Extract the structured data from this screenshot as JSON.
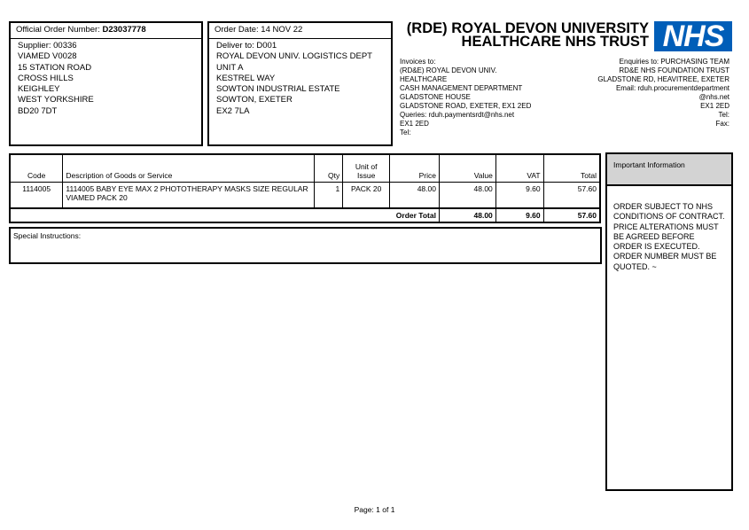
{
  "order": {
    "number_label": "Official Order Number:",
    "number": "D23037778",
    "date_label": "Order Date:",
    "date": "14 NOV 22"
  },
  "supplier": {
    "lines": [
      "Supplier: 00336",
      "VIAMED V0028",
      "15 STATION ROAD",
      "CROSS HILLS",
      "KEIGHLEY",
      "WEST YORKSHIRE",
      "BD20 7DT"
    ]
  },
  "deliver": {
    "lines": [
      "Deliver to: D001",
      "ROYAL DEVON UNIV. LOGISTICS DEPT",
      "UNIT A",
      "KESTREL WAY",
      "SOWTON INDUSTRIAL ESTATE",
      "SOWTON, EXETER",
      "EX2 7LA"
    ]
  },
  "header": {
    "title_line1": "(RDE) ROYAL DEVON UNIVERSITY",
    "title_line2": "HEALTHCARE NHS TRUST",
    "logo": "NHS",
    "logo_color": "#005EB8"
  },
  "invoices": {
    "lines": [
      "Invoices to:",
      "(RD&E) ROYAL DEVON UNIV.",
      "HEALTHCARE",
      "CASH MANAGEMENT DEPARTMENT",
      "GLADSTONE HOUSE",
      "GLADSTONE ROAD, EXETER, EX1 2ED",
      "Queries: rduh.paymentsrdt@nhs.net",
      "EX1 2ED",
      "Tel:"
    ]
  },
  "enquiries": {
    "lines": [
      "Enquiries to: PURCHASING TEAM",
      "RD&E NHS FOUNDATION TRUST",
      "GLADSTONE RD, HEAVITREE, EXETER",
      "Email: rduh.procurementdepartment",
      "@nhs.net",
      "EX1 2ED",
      "Tel:",
      "Fax:"
    ]
  },
  "table": {
    "columns": [
      "Code",
      "Description of Goods or Service",
      "Qty",
      "Unit of Issue",
      "Price",
      "Value",
      "VAT",
      "Total"
    ],
    "rows": [
      {
        "code": "1114005",
        "description": "1114005 BABY EYE MAX 2 PHOTOTHERAPY MASKS SIZE REGULAR VIAMED PACK 20",
        "qty": "1",
        "unit": "PACK 20",
        "price": "48.00",
        "value": "48.00",
        "vat": "9.60",
        "total": "57.60"
      }
    ],
    "totals": {
      "label": "Order Total",
      "value": "48.00",
      "vat": "9.60",
      "total": "57.60"
    }
  },
  "special": {
    "label": "Special Instructions:"
  },
  "info": {
    "title": "Important Information",
    "body": "ORDER SUBJECT TO NHS CONDITIONS OF CONTRACT. PRICE ALTERATIONS MUST BE AGREED BEFORE ORDER IS EXECUTED. ORDER NUMBER MUST BE QUOTED. ~"
  },
  "footer": {
    "page": "Page: 1 of 1"
  }
}
